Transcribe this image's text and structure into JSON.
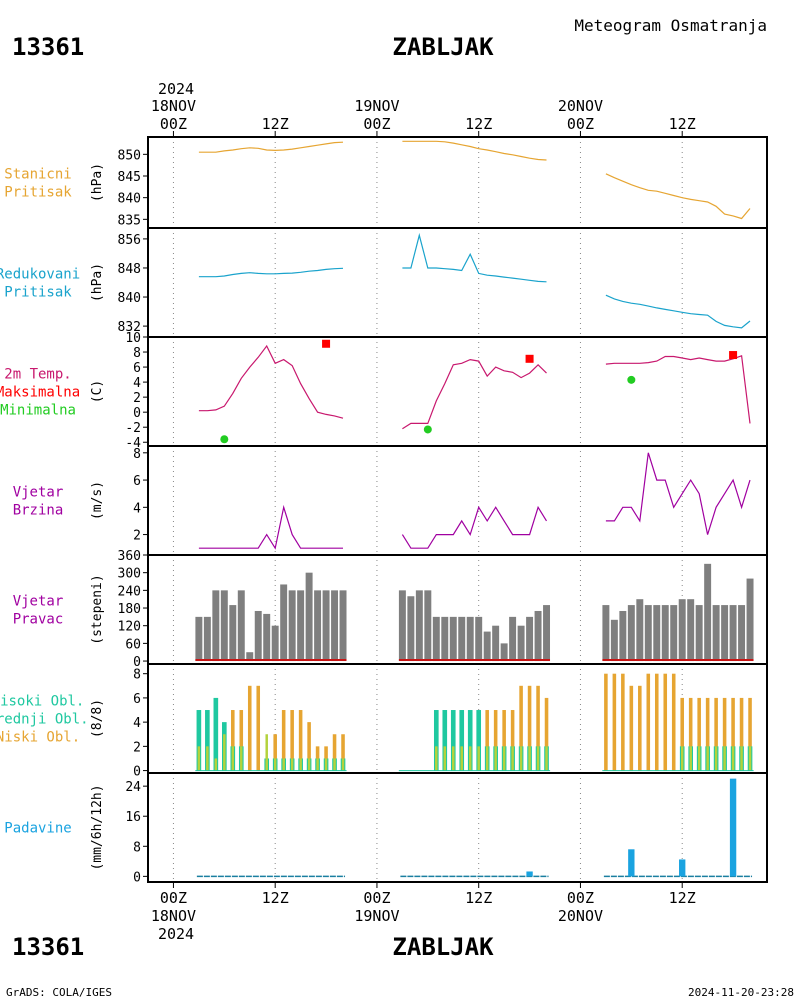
{
  "header": {
    "station_id": "13361",
    "station_name": "ZABLJAK",
    "subtitle": "Meteogram Osmatranja",
    "year": "2024"
  },
  "footer": {
    "credit": "GrADS: COLA/IGES",
    "timestamp": "2024-11-20-23:28"
  },
  "time_axis": {
    "tick_hours": [
      0,
      12,
      24,
      36,
      48,
      60
    ],
    "tick_labels": [
      "00Z",
      "12Z",
      "00Z",
      "12Z",
      "00Z",
      "12Z"
    ],
    "day_labels": [
      {
        "hour": 0,
        "label": "18NOV"
      },
      {
        "hour": 24,
        "label": "19NOV"
      },
      {
        "hour": 48,
        "label": "20NOV"
      }
    ],
    "xlim": [
      -3,
      70
    ]
  },
  "colors": {
    "station_pressure": "#e6a532",
    "reduced_pressure": "#1aa3cc",
    "temperature": "#c8186e",
    "tmax": "#ff0000",
    "tmin": "#22cc22",
    "wind": "#a000a0",
    "wind_dir_bar": "#7f7f7f",
    "wind_dir_base": "#c81414",
    "high_cloud": "#1fc8a0",
    "mid_cloud": "#b4d23c",
    "low_cloud": "#e6a532",
    "precip": "#1aa3e0",
    "precip_zero": "#1a7fa0"
  },
  "chart_data": [
    {
      "id": "station-pressure",
      "type": "line",
      "label_lines": [
        "Stanicni",
        "Pritisak"
      ],
      "ylabel": "(hPa)",
      "ylim": [
        833,
        854
      ],
      "yticks": [
        835,
        840,
        845,
        850
      ],
      "series": [
        {
          "color_key": "station_pressure",
          "segments": [
            {
              "x": [
                3,
                4,
                5,
                6,
                7,
                8,
                9,
                10,
                11,
                12,
                13,
                14,
                15,
                16,
                17,
                18,
                19,
                20
              ],
              "y": [
                850.5,
                850.5,
                850.5,
                850.8,
                851.0,
                851.3,
                851.5,
                851.4,
                851.0,
                850.9,
                851.0,
                851.2,
                851.5,
                851.8,
                852.1,
                852.4,
                852.7,
                852.8
              ]
            },
            {
              "x": [
                27,
                28,
                29,
                30,
                31,
                32,
                33,
                34,
                35,
                36,
                37,
                38,
                39,
                40,
                41,
                42,
                43,
                44
              ],
              "y": [
                853.0,
                853.0,
                853.0,
                853.0,
                853.0,
                852.9,
                852.6,
                852.2,
                851.8,
                851.3,
                851.0,
                850.6,
                850.2,
                849.9,
                849.5,
                849.1,
                848.8,
                848.7
              ]
            },
            {
              "x": [
                51,
                52,
                53,
                54,
                55,
                56,
                57,
                58,
                59,
                60,
                61,
                62,
                63,
                64,
                65,
                66,
                67,
                68
              ],
              "y": [
                845.5,
                844.6,
                843.8,
                843.0,
                842.3,
                841.7,
                841.5,
                841.0,
                840.5,
                840.0,
                839.6,
                839.3,
                839.0,
                838.0,
                836.2,
                835.8,
                835.2,
                837.5
              ]
            }
          ]
        }
      ]
    },
    {
      "id": "reduced-pressure",
      "type": "line",
      "label_lines": [
        "Redukovani",
        "Pritisak"
      ],
      "ylabel": "(hPa)",
      "ylim": [
        829,
        859
      ],
      "yticks": [
        832,
        840,
        848,
        856
      ],
      "series": [
        {
          "color_key": "reduced_pressure",
          "segments": [
            {
              "x": [
                3,
                4,
                5,
                6,
                7,
                8,
                9,
                10,
                11,
                12,
                13,
                14,
                15,
                16,
                17,
                18,
                19,
                20
              ],
              "y": [
                845.6,
                845.6,
                845.6,
                845.8,
                846.2,
                846.5,
                846.7,
                846.5,
                846.4,
                846.4,
                846.5,
                846.6,
                846.8,
                847.1,
                847.3,
                847.6,
                847.8,
                847.9
              ]
            },
            {
              "x": [
                27,
                28,
                29,
                30,
                31,
                32,
                33,
                34,
                35,
                36,
                37,
                38,
                39,
                40,
                41,
                42,
                43,
                44
              ],
              "y": [
                848.0,
                848.0,
                857.0,
                848.0,
                848.0,
                847.8,
                847.6,
                847.3,
                851.8,
                846.5,
                846.0,
                845.8,
                845.5,
                845.2,
                844.9,
                844.6,
                844.3,
                844.2
              ]
            },
            {
              "x": [
                51,
                52,
                53,
                54,
                55,
                56,
                57,
                58,
                59,
                60,
                61,
                62,
                63,
                64,
                65,
                66,
                67,
                68
              ],
              "y": [
                840.5,
                839.5,
                838.8,
                838.3,
                838.0,
                837.5,
                837.0,
                836.6,
                836.2,
                835.8,
                835.4,
                835.2,
                835.0,
                833.3,
                832.2,
                831.8,
                831.5,
                833.4
              ]
            }
          ]
        }
      ]
    },
    {
      "id": "temperature",
      "type": "line+scatter",
      "label_lines": [
        "2m Temp.",
        "Maksimalna",
        "Minimalna"
      ],
      "label_color_keys": [
        "temperature",
        "tmax",
        "tmin"
      ],
      "ylabel": "(C)",
      "ylim": [
        -4.5,
        10
      ],
      "yticks": [
        -4,
        -2,
        0,
        2,
        4,
        6,
        8,
        10
      ],
      "series": [
        {
          "name": "2m Temp.",
          "color_key": "temperature",
          "segments": [
            {
              "x": [
                3,
                4,
                5,
                6,
                7,
                8,
                9,
                10,
                11,
                12,
                13,
                14,
                15,
                16,
                17,
                18,
                19,
                20
              ],
              "y": [
                0.2,
                0.2,
                0.3,
                0.8,
                2.5,
                4.5,
                6.0,
                7.3,
                8.8,
                6.5,
                7.0,
                6.2,
                3.8,
                1.8,
                0.0,
                -0.3,
                -0.5,
                -0.8
              ]
            },
            {
              "x": [
                27,
                28,
                29,
                30,
                31,
                32,
                33,
                34,
                35,
                36,
                37,
                38,
                39,
                40,
                41,
                42,
                43,
                44
              ],
              "y": [
                -2.2,
                -1.5,
                -1.5,
                -1.5,
                1.5,
                3.8,
                6.3,
                6.5,
                7.0,
                6.8,
                4.8,
                6.0,
                5.5,
                5.3,
                4.6,
                5.2,
                6.3,
                5.2
              ]
            },
            {
              "x": [
                51,
                52,
                53,
                54,
                55,
                56,
                57,
                58,
                59,
                60,
                61,
                62,
                63,
                64,
                65,
                66,
                67,
                68
              ],
              "y": [
                6.4,
                6.5,
                6.5,
                6.5,
                6.5,
                6.6,
                6.8,
                7.4,
                7.4,
                7.2,
                7.0,
                7.2,
                7.0,
                6.8,
                6.8,
                7.1,
                7.5,
                -1.5
              ]
            }
          ]
        }
      ],
      "maxima": {
        "name": "Maksimalna",
        "color_key": "tmax",
        "x": [
          18,
          42,
          66
        ],
        "y": [
          9.1,
          7.1,
          7.6
        ]
      },
      "minima": {
        "name": "Minimalna",
        "color_key": "tmin",
        "x": [
          6,
          30,
          54
        ],
        "y": [
          -3.6,
          -2.3,
          4.3
        ]
      }
    },
    {
      "id": "wind-speed",
      "type": "line",
      "label_lines": [
        "Vjetar",
        "Brzina"
      ],
      "ylabel": "(m/s)",
      "ylim": [
        0.5,
        8.5
      ],
      "yticks": [
        2,
        4,
        6,
        8
      ],
      "series": [
        {
          "color_key": "wind",
          "segments": [
            {
              "x": [
                3,
                4,
                5,
                6,
                7,
                8,
                9,
                10,
                11,
                12,
                13,
                14,
                15,
                16,
                17,
                18,
                19,
                20
              ],
              "y": [
                1,
                1,
                1,
                1,
                1,
                1,
                1,
                1,
                2,
                1,
                4,
                2,
                1,
                1,
                1,
                1,
                1,
                1
              ]
            },
            {
              "x": [
                27,
                28,
                29,
                30,
                31,
                32,
                33,
                34,
                35,
                36,
                37,
                38,
                39,
                40,
                41,
                42,
                43,
                44
              ],
              "y": [
                2,
                1,
                1,
                1,
                2,
                2,
                2,
                3,
                2,
                4,
                3,
                4,
                3,
                2,
                2,
                2,
                4,
                3
              ]
            },
            {
              "x": [
                51,
                52,
                53,
                54,
                55,
                56,
                57,
                58,
                59,
                60,
                61,
                62,
                63,
                64,
                65,
                66,
                67,
                68
              ],
              "y": [
                3,
                3,
                4,
                4,
                3,
                8,
                6,
                6,
                4,
                5,
                6,
                5,
                2,
                4,
                5,
                6,
                4,
                6
              ]
            }
          ]
        }
      ]
    },
    {
      "id": "wind-direction",
      "type": "bar",
      "label_lines": [
        "Vjetar",
        "Pravac"
      ],
      "ylabel": "(stepeni)",
      "ylim": [
        -10,
        360
      ],
      "yticks": [
        0,
        60,
        120,
        180,
        240,
        300,
        360
      ],
      "x": [
        3,
        4,
        5,
        6,
        7,
        8,
        9,
        10,
        11,
        12,
        13,
        14,
        15,
        16,
        17,
        18,
        19,
        20,
        27,
        28,
        29,
        30,
        31,
        32,
        33,
        34,
        35,
        36,
        37,
        38,
        39,
        40,
        41,
        42,
        43,
        44,
        51,
        52,
        53,
        54,
        55,
        56,
        57,
        58,
        59,
        60,
        61,
        62,
        63,
        64,
        65,
        66,
        67,
        68
      ],
      "values": [
        150,
        150,
        240,
        240,
        190,
        240,
        30,
        170,
        160,
        120,
        260,
        240,
        240,
        300,
        240,
        240,
        240,
        240,
        240,
        220,
        240,
        240,
        150,
        150,
        150,
        150,
        150,
        150,
        100,
        120,
        60,
        150,
        120,
        150,
        170,
        190,
        190,
        140,
        170,
        190,
        210,
        190,
        190,
        190,
        190,
        210,
        210,
        190,
        330,
        190,
        190,
        190,
        190,
        280
      ]
    },
    {
      "id": "clouds",
      "type": "bar",
      "label_lines": [
        "Visoki Obl.",
        "Srednji Obl.",
        "Niski Obl."
      ],
      "label_color_keys": [
        "high_cloud",
        "high_cloud",
        "low_cloud"
      ],
      "ylabel": "(8/8)",
      "ylim": [
        -0.2,
        8.8
      ],
      "yticks": [
        0,
        2,
        4,
        6,
        8
      ],
      "x": [
        3,
        4,
        5,
        6,
        7,
        8,
        9,
        10,
        11,
        12,
        13,
        14,
        15,
        16,
        17,
        18,
        19,
        20,
        27,
        28,
        29,
        30,
        31,
        32,
        33,
        34,
        35,
        36,
        37,
        38,
        39,
        40,
        41,
        42,
        43,
        44,
        51,
        52,
        53,
        54,
        55,
        56,
        57,
        58,
        59,
        60,
        61,
        62,
        63,
        64,
        65,
        66,
        67,
        68
      ],
      "series": [
        {
          "name": "Visoki Obl.",
          "color_key": "high_cloud",
          "values": [
            5,
            5,
            6,
            4,
            2,
            2,
            0,
            0,
            1,
            1,
            1,
            1,
            1,
            1,
            1,
            1,
            1,
            1,
            0,
            0,
            0,
            0,
            5,
            5,
            5,
            5,
            5,
            5,
            2,
            2,
            2,
            2,
            2,
            2,
            2,
            2,
            0,
            0,
            0,
            0,
            0,
            0,
            0,
            0,
            0,
            2,
            2,
            2,
            2,
            2,
            2,
            2,
            2,
            2
          ]
        },
        {
          "name": "Srednji Obl.",
          "color_key": "mid_cloud",
          "values": [
            2,
            2,
            1,
            3,
            2,
            2,
            0,
            0,
            3,
            1,
            1,
            1,
            1,
            1,
            1,
            1,
            1,
            1,
            0,
            0,
            0,
            0,
            2,
            2,
            2,
            2,
            2,
            2,
            2,
            2,
            2,
            2,
            2,
            2,
            2,
            2,
            0,
            0,
            0,
            0,
            0,
            0,
            0,
            0,
            0,
            2,
            2,
            2,
            2,
            2,
            2,
            2,
            2,
            2
          ]
        },
        {
          "name": "Niski Obl.",
          "color_key": "low_cloud",
          "values": [
            2,
            2,
            1,
            3,
            5,
            5,
            7,
            7,
            1,
            3,
            5,
            5,
            5,
            4,
            2,
            2,
            3,
            3,
            0,
            0,
            0,
            0,
            0,
            0,
            0,
            0,
            0,
            0,
            5,
            5,
            5,
            5,
            7,
            7,
            7,
            6,
            8,
            8,
            8,
            7,
            7,
            8,
            8,
            8,
            8,
            6,
            6,
            6,
            6,
            6,
            6,
            6,
            6,
            6
          ]
        }
      ]
    },
    {
      "id": "precipitation",
      "type": "bar",
      "label_lines": [
        "Padavine"
      ],
      "ylabel": "(mm/6h/12h)",
      "ylim": [
        -1.5,
        27.5
      ],
      "yticks": [
        0,
        8,
        16,
        24
      ],
      "bars": {
        "x": [
          42,
          54,
          60,
          66
        ],
        "values": [
          1.3,
          7.2,
          4.5,
          26.0
        ]
      },
      "zero_segments": [
        [
          3,
          20
        ],
        [
          27,
          44
        ],
        [
          51,
          68
        ]
      ]
    }
  ]
}
